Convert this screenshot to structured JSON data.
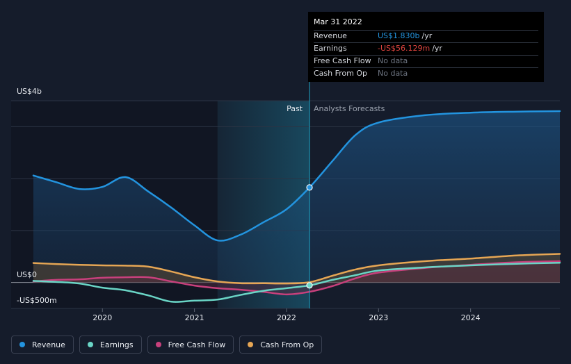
{
  "chart_data": {
    "type": "area",
    "y_unit_labels": {
      "top": "US$4b",
      "zero": "US$0",
      "bottom": "-US$500m"
    },
    "ylim": [
      -500,
      3500
    ],
    "xlim": [
      2019.25,
      2024.97
    ],
    "x_ticks": [
      {
        "value": 2020,
        "label": "2020"
      },
      {
        "value": 2021,
        "label": "2021"
      },
      {
        "value": 2022,
        "label": "2022"
      },
      {
        "value": 2023,
        "label": "2023"
      },
      {
        "value": 2024,
        "label": "2024"
      }
    ],
    "gridlines": [
      3500,
      3000,
      2000,
      1000,
      0,
      -500
    ],
    "past_label": "Past",
    "forecast_label": "Analysts Forecasts",
    "past_region": [
      2021.25,
      2022.25
    ],
    "divider_x": 2022.25,
    "series": [
      {
        "name": "Revenue",
        "color": "#2394df",
        "fill": true,
        "points": [
          [
            2019.25,
            2060
          ],
          [
            2019.5,
            1930
          ],
          [
            2019.75,
            1800
          ],
          [
            2020.0,
            1840
          ],
          [
            2020.25,
            2030
          ],
          [
            2020.5,
            1750
          ],
          [
            2020.75,
            1440
          ],
          [
            2021.0,
            1100
          ],
          [
            2021.25,
            810
          ],
          [
            2021.5,
            920
          ],
          [
            2021.75,
            1160
          ],
          [
            2022.0,
            1410
          ],
          [
            2022.25,
            1830
          ],
          [
            2022.5,
            2340
          ],
          [
            2022.75,
            2840
          ],
          [
            2023.0,
            3080
          ],
          [
            2023.5,
            3220
          ],
          [
            2024.0,
            3270
          ],
          [
            2024.5,
            3290
          ],
          [
            2024.97,
            3300
          ]
        ]
      },
      {
        "name": "Cash From Op",
        "color": "#e6a654",
        "fill": true,
        "points": [
          [
            2019.25,
            375
          ],
          [
            2019.5,
            355
          ],
          [
            2019.75,
            340
          ],
          [
            2020.0,
            330
          ],
          [
            2020.25,
            325
          ],
          [
            2020.5,
            305
          ],
          [
            2020.75,
            210
          ],
          [
            2021.0,
            100
          ],
          [
            2021.25,
            20
          ],
          [
            2021.5,
            -15
          ],
          [
            2021.75,
            -15
          ],
          [
            2022.0,
            -20
          ],
          [
            2022.25,
            5
          ],
          [
            2022.5,
            130
          ],
          [
            2022.75,
            250
          ],
          [
            2023.0,
            330
          ],
          [
            2023.5,
            410
          ],
          [
            2024.0,
            460
          ],
          [
            2024.5,
            520
          ],
          [
            2024.97,
            550
          ]
        ]
      },
      {
        "name": "Free Cash Flow",
        "color": "#c8407c",
        "fill": true,
        "points": [
          [
            2019.25,
            20
          ],
          [
            2019.5,
            50
          ],
          [
            2019.75,
            60
          ],
          [
            2020.0,
            90
          ],
          [
            2020.25,
            100
          ],
          [
            2020.5,
            100
          ],
          [
            2020.75,
            20
          ],
          [
            2021.0,
            -60
          ],
          [
            2021.25,
            -110
          ],
          [
            2021.5,
            -140
          ],
          [
            2021.75,
            -180
          ],
          [
            2022.0,
            -230
          ],
          [
            2022.25,
            -180
          ],
          [
            2022.5,
            -70
          ],
          [
            2022.75,
            80
          ],
          [
            2023.0,
            190
          ],
          [
            2023.5,
            280
          ],
          [
            2024.0,
            340
          ],
          [
            2024.5,
            390
          ],
          [
            2024.97,
            410
          ]
        ]
      },
      {
        "name": "Earnings",
        "color": "#6ad5c6",
        "fill": false,
        "points": [
          [
            2019.25,
            30
          ],
          [
            2019.5,
            10
          ],
          [
            2019.75,
            -20
          ],
          [
            2020.0,
            -100
          ],
          [
            2020.25,
            -150
          ],
          [
            2020.5,
            -250
          ],
          [
            2020.75,
            -370
          ],
          [
            2021.0,
            -350
          ],
          [
            2021.25,
            -330
          ],
          [
            2021.5,
            -240
          ],
          [
            2021.75,
            -160
          ],
          [
            2022.0,
            -110
          ],
          [
            2022.25,
            -56
          ],
          [
            2022.5,
            50
          ],
          [
            2022.75,
            140
          ],
          [
            2023.0,
            230
          ],
          [
            2023.5,
            290
          ],
          [
            2024.0,
            330
          ],
          [
            2024.5,
            360
          ],
          [
            2024.97,
            380
          ]
        ]
      }
    ],
    "highlight_points": [
      {
        "series": "Revenue",
        "x": 2022.25,
        "y": 1830
      },
      {
        "series": "Earnings",
        "x": 2022.25,
        "y": -56
      }
    ]
  },
  "tooltip": {
    "date": "Mar 31 2022",
    "rows": [
      {
        "label": "Revenue",
        "value": "US$1.830b",
        "unit": "/yr",
        "style": "blue"
      },
      {
        "label": "Earnings",
        "value": "-US$56.129m",
        "unit": "/yr",
        "style": "red"
      },
      {
        "label": "Free Cash Flow",
        "value": "No data",
        "unit": "",
        "style": "grey"
      },
      {
        "label": "Cash From Op",
        "value": "No data",
        "unit": "",
        "style": "grey"
      }
    ]
  },
  "legend": [
    {
      "label": "Revenue",
      "color": "#2394df"
    },
    {
      "label": "Earnings",
      "color": "#6ad5c6"
    },
    {
      "label": "Free Cash Flow",
      "color": "#c8407c"
    },
    {
      "label": "Cash From Op",
      "color": "#e6a654"
    }
  ]
}
